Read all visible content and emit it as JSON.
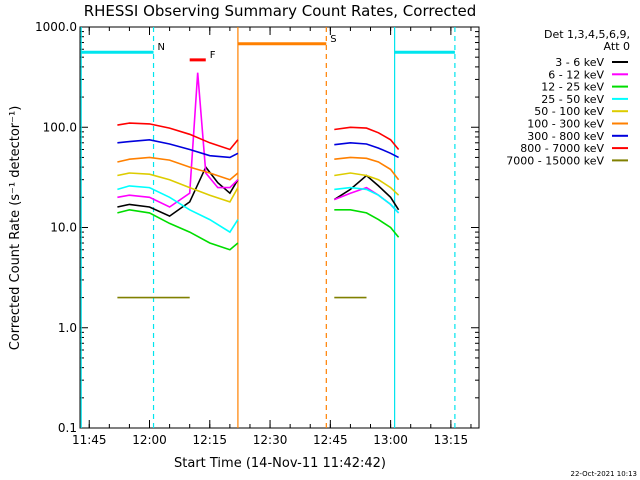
{
  "chart_data": {
    "type": "line",
    "title": "RHESSI Observing Summary Count Rates, Corrected",
    "xlabel": "Start Time (14-Nov-11 11:42:42)",
    "ylabel": "Corrected Count Rate (s⁻¹ detector⁻¹)",
    "y_scale": "log",
    "ylim": [
      0.1,
      1000
    ],
    "xlim": [
      "11:42:42",
      "13:22:00"
    ],
    "x_ticks": [
      "11:45",
      "12:00",
      "12:15",
      "12:30",
      "12:45",
      "13:00",
      "13:15"
    ],
    "y_ticks": [
      "0.1",
      "1.0",
      "10.0",
      "100.0",
      "1000.0"
    ],
    "legend_header": [
      "Det 1,3,4,5,6,9,",
      "Att 0"
    ],
    "legend_position": "right",
    "timestamp": "22-Oct-2021 10:13",
    "flags": [
      {
        "label": "N",
        "color": "#00e5ee",
        "intervals": [
          [
            "11:43:00",
            "12:01:00"
          ],
          [
            "13:01:00",
            "13:16:00"
          ]
        ],
        "level": 560
      },
      {
        "label": "F",
        "color": "#ff0000",
        "intervals": [
          [
            "12:10:00",
            "12:14:00"
          ]
        ],
        "level": 470
      },
      {
        "label": "S",
        "color": "#ff8000",
        "intervals": [
          [
            "12:22:00",
            "12:44:00"
          ]
        ],
        "level": 680
      }
    ],
    "dashed_markers": [
      {
        "time": "12:01:00",
        "color": "#00e5ee"
      },
      {
        "time": "13:16:00",
        "color": "#00e5ee"
      },
      {
        "time": "12:44:00",
        "color": "#ff8000"
      }
    ],
    "solid_markers": [
      {
        "time": "11:43:00",
        "color": "#00e5ee"
      },
      {
        "time": "13:01:00",
        "color": "#00e5ee"
      },
      {
        "time": "12:22:00",
        "color": "#ff8000"
      }
    ],
    "series": [
      {
        "name": "3 - 6 keV",
        "color": "#000000",
        "segments": [
          {
            "x": [
              "11:52",
              "11:55",
              "12:00",
              "12:05",
              "12:10",
              "12:14",
              "12:17",
              "12:20",
              "12:22"
            ],
            "y": [
              16,
              17,
              16,
              13,
              18,
              40,
              28,
              22,
              30
            ]
          },
          {
            "x": [
              "12:46",
              "12:50",
              "12:54",
              "12:57",
              "13:00",
              "13:02"
            ],
            "y": [
              19,
              24,
              33,
              26,
              20,
              15
            ]
          }
        ]
      },
      {
        "name": "6 - 12 keV",
        "color": "#ff00ff",
        "segments": [
          {
            "x": [
              "11:52",
              "11:55",
              "12:00",
              "12:05",
              "12:10",
              "12:12",
              "12:14",
              "12:17",
              "12:20",
              "12:22"
            ],
            "y": [
              20,
              21,
              20,
              16,
              22,
              350,
              35,
              25,
              25,
              30
            ]
          },
          {
            "x": [
              "12:46",
              "12:50",
              "12:54",
              "12:57",
              "13:00",
              "13:02"
            ],
            "y": [
              19,
              22,
              25,
              21,
              17,
              14
            ]
          }
        ]
      },
      {
        "name": "12 - 25 keV",
        "color": "#00dd00",
        "segments": [
          {
            "x": [
              "11:52",
              "11:55",
              "12:00",
              "12:05",
              "12:10",
              "12:15",
              "12:20",
              "12:22"
            ],
            "y": [
              14,
              15,
              14,
              11,
              9,
              7,
              6,
              7
            ]
          },
          {
            "x": [
              "12:46",
              "12:50",
              "12:54",
              "12:57",
              "13:00",
              "13:02"
            ],
            "y": [
              15,
              15,
              14,
              12,
              10,
              8
            ]
          }
        ]
      },
      {
        "name": "25 - 50 keV",
        "color": "#00ffff",
        "segments": [
          {
            "x": [
              "11:52",
              "11:55",
              "12:00",
              "12:05",
              "12:10",
              "12:15",
              "12:20",
              "12:22"
            ],
            "y": [
              24,
              26,
              25,
              20,
              15,
              12,
              9,
              12
            ]
          },
          {
            "x": [
              "12:46",
              "12:50",
              "12:54",
              "12:57",
              "13:00",
              "13:02"
            ],
            "y": [
              24,
              25,
              24,
              21,
              17,
              14
            ]
          }
        ]
      },
      {
        "name": "50 - 100 keV",
        "color": "#ddcc00",
        "segments": [
          {
            "x": [
              "11:52",
              "11:55",
              "12:00",
              "12:05",
              "12:10",
              "12:15",
              "12:20",
              "12:22"
            ],
            "y": [
              33,
              35,
              34,
              30,
              25,
              21,
              18,
              25
            ]
          },
          {
            "x": [
              "12:46",
              "12:50",
              "12:54",
              "12:57",
              "13:00",
              "13:02"
            ],
            "y": [
              33,
              35,
              33,
              30,
              25,
              21
            ]
          }
        ]
      },
      {
        "name": "100 - 300 keV",
        "color": "#ff8000",
        "segments": [
          {
            "x": [
              "11:52",
              "11:55",
              "12:00",
              "12:05",
              "12:10",
              "12:15",
              "12:20",
              "12:22"
            ],
            "y": [
              45,
              48,
              50,
              47,
              40,
              35,
              30,
              35
            ]
          },
          {
            "x": [
              "12:46",
              "12:50",
              "12:54",
              "12:57",
              "13:00",
              "13:02"
            ],
            "y": [
              48,
              50,
              49,
              45,
              38,
              30
            ]
          }
        ]
      },
      {
        "name": "300 - 800 keV",
        "color": "#0000dd",
        "segments": [
          {
            "x": [
              "11:52",
              "11:55",
              "12:00",
              "12:05",
              "12:10",
              "12:15",
              "12:20",
              "12:22"
            ],
            "y": [
              70,
              72,
              75,
              68,
              60,
              52,
              50,
              55
            ]
          },
          {
            "x": [
              "12:46",
              "12:50",
              "12:54",
              "12:57",
              "13:00",
              "13:02"
            ],
            "y": [
              67,
              70,
              68,
              62,
              55,
              50
            ]
          }
        ]
      },
      {
        "name": "800 - 7000 keV",
        "color": "#ff0000",
        "segments": [
          {
            "x": [
              "11:52",
              "11:55",
              "12:00",
              "12:05",
              "12:10",
              "12:15",
              "12:20",
              "12:22"
            ],
            "y": [
              105,
              110,
              108,
              98,
              85,
              70,
              60,
              75
            ]
          },
          {
            "x": [
              "12:46",
              "12:50",
              "12:54",
              "12:57",
              "13:00",
              "13:02"
            ],
            "y": [
              95,
              100,
              98,
              88,
              75,
              60
            ]
          }
        ]
      },
      {
        "name": "7000 - 15000 keV",
        "color": "#808000",
        "segments": [
          {
            "x": [
              "11:52",
              "12:10"
            ],
            "y": [
              2,
              2
            ]
          },
          {
            "x": [
              "12:46",
              "12:54"
            ],
            "y": [
              2,
              2
            ]
          }
        ]
      }
    ]
  }
}
